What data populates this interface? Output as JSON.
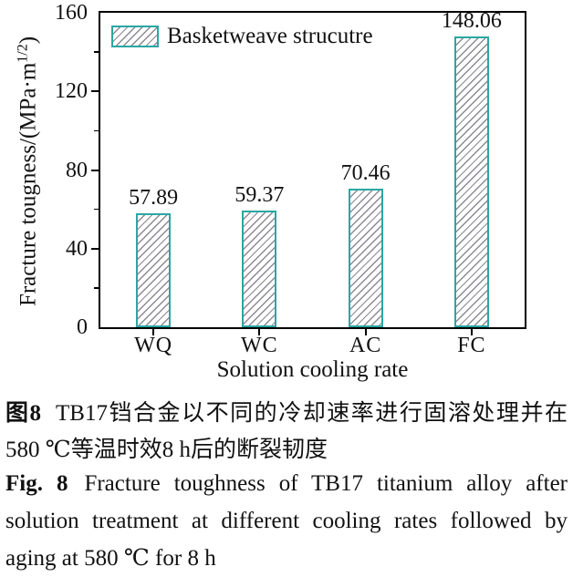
{
  "chart_data": {
    "type": "bar",
    "categories": [
      "WQ",
      "WC",
      "AC",
      "FC"
    ],
    "values": [
      57.89,
      59.37,
      70.46,
      148.06
    ],
    "value_labels": [
      "57.89",
      "59.37",
      "70.46",
      "148.06"
    ],
    "legend": "Basketweave strucutre",
    "legend_position": "upper-left",
    "xlabel": "Solution cooling rate",
    "ylabel": "Fracture tougness/(MPa·m^(1/2))",
    "ylabel_parts": {
      "main": "Fracture tougness/(MPa·m",
      "sup": "1/2",
      "close": ")"
    },
    "ylim": [
      0,
      160
    ],
    "yticks_major": [
      0,
      40,
      80,
      120,
      160
    ],
    "yticks_minor": [
      20,
      60,
      100,
      140
    ],
    "grid": false,
    "colors": {
      "bar_edge": "#2aa7a2",
      "bar_hatch": "#8a8a94",
      "axis": "#000000",
      "text": "#111111"
    }
  },
  "figure": {
    "caption_cn": {
      "label": "图8",
      "text": "TB17铛合金以不同的冷却速率进行固溶处理并在580 ℃等温时效8 h后的断裂韧度"
    },
    "caption_en": {
      "label": "Fig. 8",
      "text": "Fracture toughness of TB17 titanium alloy after solution treatment at different cooling rates followed by aging at 580 ℃ for 8 h"
    }
  }
}
